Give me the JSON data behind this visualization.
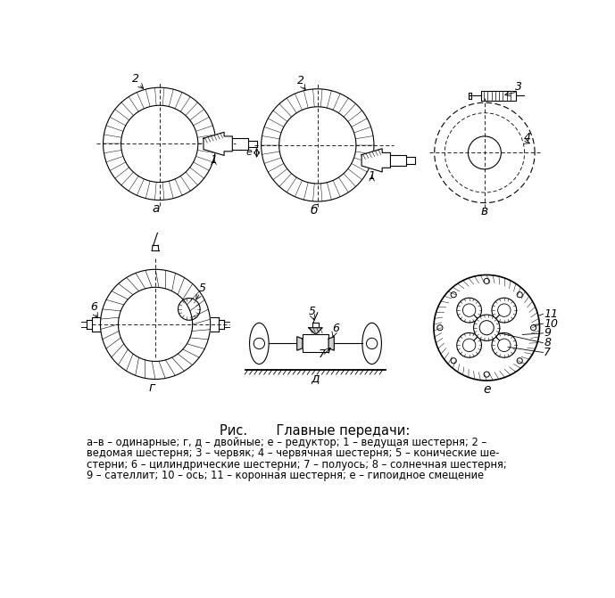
{
  "title": "Рис.       Главные передачи:",
  "caption_line1": "а–в – одинарные; г, д – двойные; е – редуктор; 1 – ведущая шестерня; 2 –",
  "caption_line2": "ведомая шестерня; 3 – червяк; 4 – червячная шестерня; 5 – конические ше-",
  "caption_line3": "стерни; 6 – цилиндрические шестерни; 7 – полуось; 8 – солнечная шестерня;",
  "caption_line4": "9 – сателлит; 10 – ось; 11 – коронная шестерня; e – гипоидное смещение",
  "bg_color": "#ffffff"
}
